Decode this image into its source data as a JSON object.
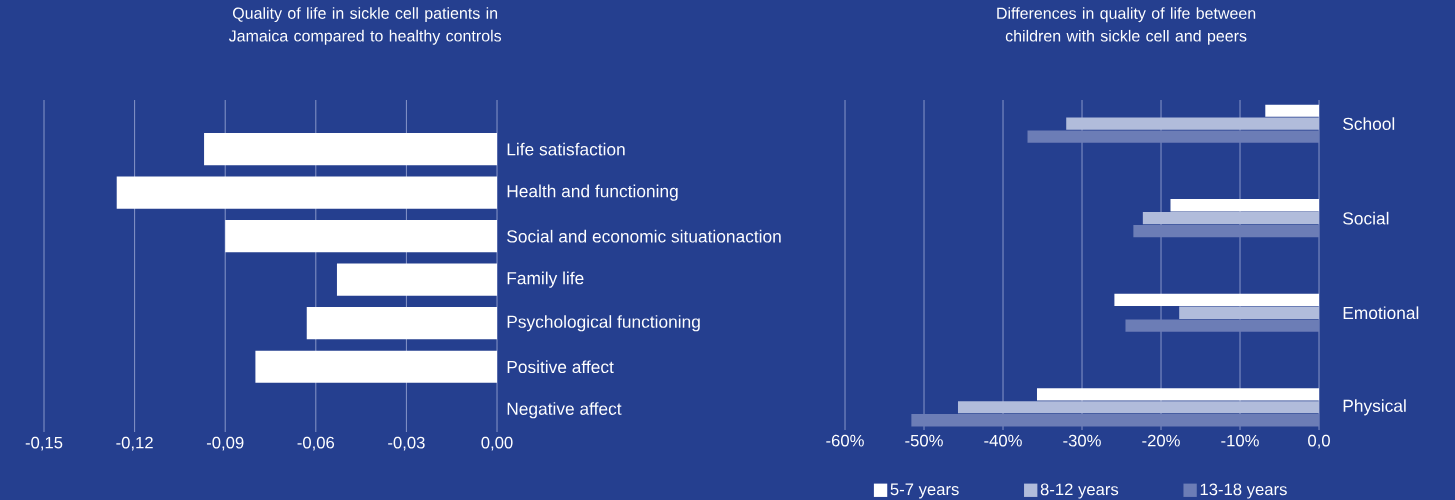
{
  "chart_data": [
    {
      "type": "bar",
      "orientation": "horizontal",
      "title": "Quality of life in sickle cell patients in Jamaica compared to healthy controls",
      "categories": [
        "Life satisfaction",
        "Health and functioning",
        "Social and economic situationaction",
        "Family life",
        "Psychological functioning",
        "Positive affect",
        "Negative affect"
      ],
      "values": [
        -0.097,
        -0.126,
        -0.09,
        -0.053,
        -0.063,
        -0.08,
        null
      ],
      "color": "#ffffff",
      "xlim": [
        -0.15,
        0
      ],
      "xticks": [
        {
          "value": -0.15,
          "label": "-0,15"
        },
        {
          "value": -0.12,
          "label": "-0,12"
        },
        {
          "value": -0.09,
          "label": "-0,09"
        },
        {
          "value": -0.06,
          "label": "-0,06"
        },
        {
          "value": -0.03,
          "label": "-0,03"
        },
        {
          "value": 0,
          "label": "0,00"
        }
      ],
      "grid": "x",
      "legend": false
    },
    {
      "type": "bar",
      "orientation": "horizontal",
      "title": "Differences in quality of life between children with sickle cell and peers",
      "categories": [
        "School",
        "Social",
        "Emotional",
        "Physical"
      ],
      "series": [
        {
          "name": "5-7 years",
          "color": "#ffffff",
          "values": [
            -6.8,
            -18.8,
            -25.9,
            -35.7
          ]
        },
        {
          "name": "8-12 years",
          "color": "#b1bcdb",
          "values": [
            -32.0,
            -22.3,
            -17.7,
            -45.7
          ]
        },
        {
          "name": "13-18 years",
          "color": "#6c7db6",
          "values": [
            -36.9,
            -23.5,
            -24.5,
            -51.6
          ]
        }
      ],
      "xlim": [
        -60,
        0
      ],
      "xticks": [
        {
          "value": -60,
          "label": "-60%"
        },
        {
          "value": -50,
          "label": "-50%"
        },
        {
          "value": -40,
          "label": "-40%"
        },
        {
          "value": -30,
          "label": "-30%"
        },
        {
          "value": -20,
          "label": "-20%"
        },
        {
          "value": -10,
          "label": "-10%"
        },
        {
          "value": 0,
          "label": "0,0"
        }
      ],
      "grid": "x",
      "legend": "bottom"
    }
  ]
}
